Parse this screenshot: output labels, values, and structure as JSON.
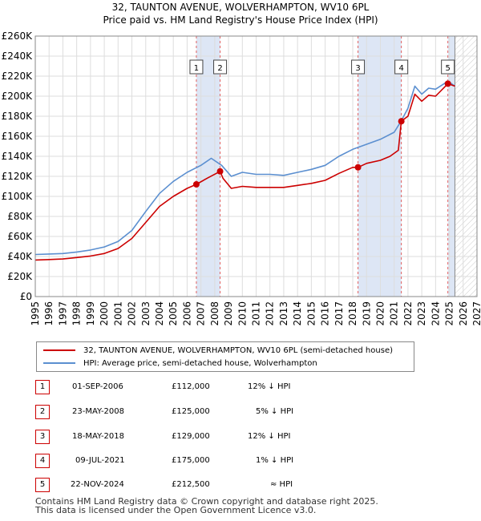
{
  "title_line1": "32, TAUNTON AVENUE, WOLVERHAMPTON, WV10 6PL",
  "title_line2": "Price paid vs. HM Land Registry's House Price Index (HPI)",
  "legend": {
    "property_label": "32, TAUNTON AVENUE, WOLVERHAMPTON, WV10 6PL (semi-detached house)",
    "hpi_label": "HPI: Average price, semi-detached house, Wolverhampton"
  },
  "transactions": [
    {
      "num": "1",
      "date": "01-SEP-2006",
      "price": "£112,000",
      "vs_hpi": "12% ↓ HPI"
    },
    {
      "num": "2",
      "date": "23-MAY-2008",
      "price": "£125,000",
      "vs_hpi": "5% ↓ HPI"
    },
    {
      "num": "3",
      "date": "18-MAY-2018",
      "price": "£129,000",
      "vs_hpi": "12% ↓ HPI"
    },
    {
      "num": "4",
      "date": "09-JUL-2021",
      "price": "£175,000",
      "vs_hpi": "1% ↓ HPI"
    },
    {
      "num": "5",
      "date": "22-NOV-2024",
      "price": "£212,500",
      "vs_hpi": "≈ HPI"
    }
  ],
  "footer_line1": "Contains HM Land Registry data © Crown copyright and database right 2025.",
  "footer_line2": "This data is licensed under the Open Government Licence v3.0.",
  "colors": {
    "property": "#cc0000",
    "hpi": "#5b8fd0",
    "shade": "#dde6f5",
    "grid": "#dddddd"
  },
  "chart_data": {
    "type": "line",
    "xlim": [
      1995,
      2027
    ],
    "ylim": [
      0,
      260000
    ],
    "x_ticks": [
      "1995",
      "1996",
      "1997",
      "1998",
      "1999",
      "2000",
      "2001",
      "2002",
      "2003",
      "2004",
      "2005",
      "2006",
      "2007",
      "2008",
      "2009",
      "2010",
      "2011",
      "2012",
      "2013",
      "2014",
      "2015",
      "2016",
      "2017",
      "2018",
      "2019",
      "2020",
      "2021",
      "2022",
      "2023",
      "2024",
      "2025",
      "2026",
      "2027"
    ],
    "y_ticks": [
      "£0",
      "£20K",
      "£40K",
      "£60K",
      "£80K",
      "£100K",
      "£120K",
      "£140K",
      "£160K",
      "£180K",
      "£200K",
      "£220K",
      "£240K",
      "£260K"
    ],
    "shaded_ranges": [
      [
        2006.67,
        2008.39
      ],
      [
        2018.38,
        2021.52
      ],
      [
        2024.89,
        2025.4
      ]
    ],
    "forecast_start": 2025.4,
    "series": [
      {
        "name": "HPI: Average price, semi-detached house, Wolverhampton",
        "x": [
          1995,
          1996,
          1997,
          1998,
          1999,
          2000,
          2001,
          2002,
          2003,
          2004,
          2005,
          2006,
          2007,
          2007.75,
          2008.5,
          2009.2,
          2010,
          2011,
          2012,
          2013,
          2014,
          2015,
          2016,
          2017,
          2018,
          2019,
          2020,
          2021,
          2021.5,
          2022,
          2022.5,
          2023,
          2023.5,
          2024,
          2024.9,
          2025.4
        ],
        "y": [
          42000,
          42500,
          43000,
          44500,
          46500,
          49500,
          55000,
          66000,
          85000,
          103000,
          115000,
          124000,
          131000,
          138000,
          131000,
          120000,
          124000,
          122000,
          122000,
          121000,
          124000,
          127000,
          131000,
          140000,
          147000,
          152000,
          157000,
          164000,
          175000,
          188000,
          210000,
          202000,
          208000,
          207000,
          215000,
          210000
        ]
      },
      {
        "name": "32, TAUNTON AVENUE, WOLVERHAMPTON, WV10 6PL (semi-detached house)",
        "x": [
          1995,
          1996,
          1997,
          1998,
          1999,
          2000,
          2001,
          2002,
          2003,
          2004,
          2005,
          2006,
          2006.67,
          2007.5,
          2008.39,
          2008.6,
          2009.2,
          2010,
          2011,
          2012,
          2013,
          2014,
          2015,
          2016,
          2017,
          2018,
          2018.38,
          2019,
          2020,
          2020.7,
          2021.3,
          2021.52,
          2022,
          2022.5,
          2023,
          2023.5,
          2024,
          2024.89,
          2025.4
        ],
        "y": [
          36500,
          37000,
          37500,
          39000,
          40500,
          43000,
          48000,
          58000,
          74000,
          90000,
          100000,
          108000,
          112000,
          118500,
          125000,
          118000,
          108000,
          110000,
          109000,
          109000,
          109000,
          111000,
          113000,
          116000,
          123000,
          129000,
          129000,
          133000,
          136000,
          140000,
          146000,
          175000,
          180000,
          202000,
          195000,
          201000,
          200000,
          212500,
          210000
        ]
      }
    ],
    "sales": [
      {
        "label": "1",
        "x": 2006.67,
        "y": 112000
      },
      {
        "label": "2",
        "x": 2008.39,
        "y": 125000
      },
      {
        "label": "3",
        "x": 2018.38,
        "y": 129000
      },
      {
        "label": "4",
        "x": 2021.52,
        "y": 175000
      },
      {
        "label": "5",
        "x": 2024.89,
        "y": 212500
      }
    ]
  }
}
